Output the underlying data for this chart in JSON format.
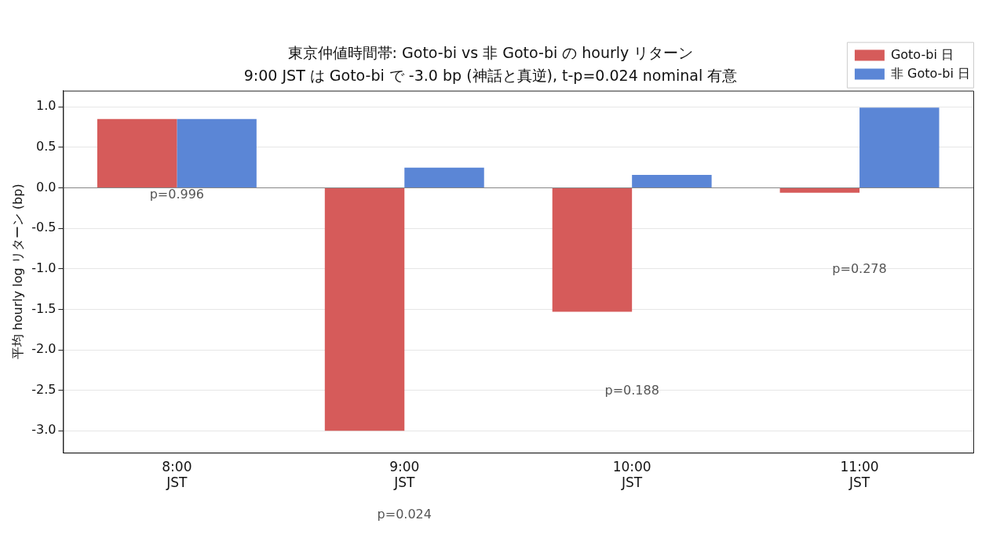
{
  "chart_data": {
    "type": "bar",
    "title": "東京仲値時間帯: Goto-bi vs 非 Goto-bi の hourly リターン",
    "subtitle": "9:00 JST は Goto-bi で -3.0 bp (神話と真逆), t-p=0.024 nominal 有意",
    "ylabel": "平均 hourly log リターン (bp)",
    "categories": [
      "8:00\nJST",
      "9:00\nJST",
      "10:00\nJST",
      "11:00\nJST"
    ],
    "series": [
      {
        "name": "Goto-bi 日",
        "color": "#d65b5a",
        "values": [
          0.85,
          -3.0,
          -1.53,
          -0.06
        ]
      },
      {
        "name": "非 Goto-bi 日",
        "color": "#5b86d6",
        "values": [
          0.85,
          0.25,
          0.16,
          0.99
        ]
      }
    ],
    "ylim": [
      -3.27,
      1.2
    ],
    "yticks": [
      {
        "value": -3,
        "label": "-3.0"
      },
      {
        "value": -2.5,
        "label": "-2.5"
      },
      {
        "value": -2,
        "label": "-2.0"
      },
      {
        "value": -1.5,
        "label": "-1.5"
      },
      {
        "value": -1,
        "label": "-1.0"
      },
      {
        "value": -0.5,
        "label": "-0.5"
      },
      {
        "value": 0,
        "label": "0.0"
      },
      {
        "value": 0.5,
        "label": "0.5"
      },
      {
        "value": 1,
        "label": "1.0"
      }
    ],
    "ref_lines": [
      {
        "axis": "y",
        "value": 0,
        "color": "#888888"
      }
    ],
    "annotations": [
      "p=0.996",
      "p=0.024",
      "p=0.188",
      "p=0.278"
    ],
    "grid": "y",
    "legend": "top right"
  }
}
